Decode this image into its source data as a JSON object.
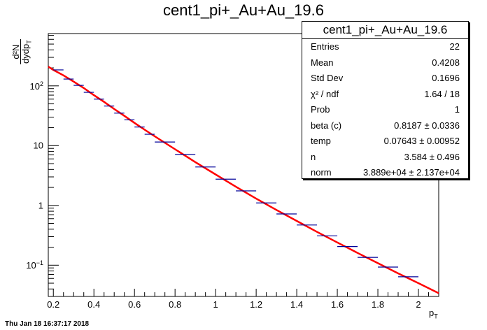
{
  "chart_data": {
    "type": "scatter",
    "title": "cent1_pi+_Au+Au_19.6",
    "xlabel": "p_T",
    "ylabel": "d²N/dydp_T",
    "x_scale": "linear",
    "y_scale": "log",
    "xlim": [
      0.175,
      2.1
    ],
    "ylim": [
      0.03,
      750
    ],
    "x_ticks": [
      "0.2",
      "0.4",
      "0.6",
      "0.8",
      "1",
      "1.2",
      "1.4",
      "1.6",
      "1.8",
      "2"
    ],
    "y_ticks": [
      "10⁻¹",
      "1",
      "10",
      "10²"
    ],
    "grid": false,
    "legend": "none",
    "series": [
      {
        "style": "histogram points with x error bars",
        "color": "#000099",
        "x": [
          0.225,
          0.275,
          0.325,
          0.375,
          0.425,
          0.475,
          0.525,
          0.575,
          0.625,
          0.675,
          0.75,
          0.85,
          0.95,
          1.05,
          1.15,
          1.25,
          1.35,
          1.45,
          1.55,
          1.65,
          1.75,
          1.85,
          1.95
        ],
        "x_err": [
          0.025,
          0.025,
          0.025,
          0.025,
          0.025,
          0.025,
          0.025,
          0.025,
          0.025,
          0.025,
          0.05,
          0.05,
          0.05,
          0.05,
          0.05,
          0.05,
          0.05,
          0.05,
          0.05,
          0.05,
          0.05,
          0.05,
          0.05
        ],
        "y": [
          185,
          130,
          102,
          78,
          60,
          46,
          35,
          27,
          20.5,
          15.5,
          11.5,
          7.1,
          4.4,
          2.75,
          1.75,
          1.1,
          0.72,
          0.47,
          0.31,
          0.205,
          0.135,
          0.093,
          0.064
        ]
      },
      {
        "style": "fit line",
        "color": "#ff0000",
        "x": [
          0.175,
          0.2,
          0.25,
          0.3,
          0.35,
          0.4,
          0.45,
          0.5,
          0.55,
          0.6,
          0.65,
          0.7,
          0.8,
          0.9,
          1.0,
          1.1,
          1.2,
          1.3,
          1.4,
          1.5,
          1.6,
          1.7,
          1.8,
          1.9,
          2.0,
          2.1
        ],
        "y": [
          210,
          185,
          150,
          118,
          92,
          70,
          54,
          41,
          31.5,
          24,
          18.5,
          14.3,
          8.7,
          5.3,
          3.3,
          2.05,
          1.3,
          0.84,
          0.55,
          0.36,
          0.24,
          0.16,
          0.108,
          0.073,
          0.05,
          0.034
        ]
      }
    ]
  },
  "stats_box": {
    "title": "cent1_pi+_Au+Au_19.6",
    "rows": [
      {
        "key": "Entries",
        "value": "22"
      },
      {
        "key": "Mean",
        "value": "0.4208"
      },
      {
        "key": "Std Dev",
        "value": "0.1696"
      },
      {
        "key": "χ² / ndf",
        "value": "1.64 / 18"
      },
      {
        "key": "Prob",
        "value": "1"
      },
      {
        "key": "beta (c)",
        "value": "0.8187 ± 0.0336"
      },
      {
        "key": "temp",
        "value": "0.07643 ± 0.00952"
      },
      {
        "key": "n",
        "value": "3.584 ± 0.496"
      },
      {
        "key": "norm",
        "value": "3.889e+04 ± 2.137e+04"
      }
    ]
  },
  "labels": {
    "ylabel_num": "d²N",
    "ylabel_den": "dydp",
    "ylabel_sub": "T",
    "xlabel_main": "p",
    "xlabel_sub": "T"
  },
  "footer": "Thu Jan 18 16:37:17 2018"
}
